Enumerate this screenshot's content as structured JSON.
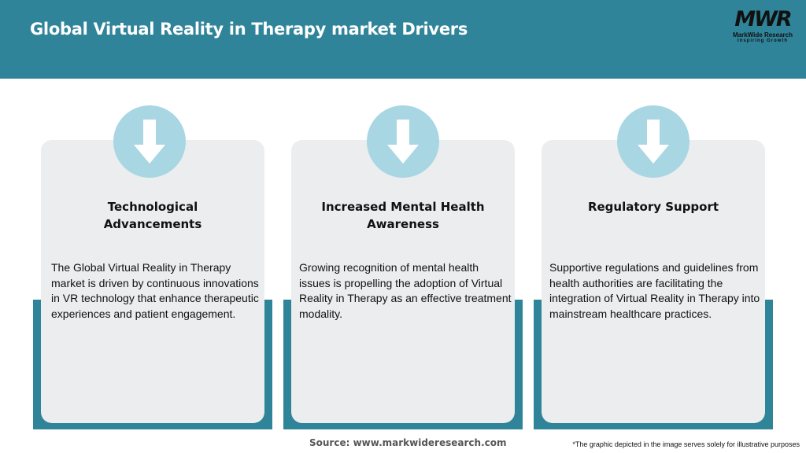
{
  "header": {
    "title": "Global Virtual Reality in Therapy market Drivers",
    "logo": {
      "mark": "MWR",
      "name": "MarkWide Research",
      "tagline": "Inspiring Growth"
    }
  },
  "colors": {
    "header": "#2f8499",
    "card": "#ebedef",
    "circle": "#a9d6e3"
  },
  "cards": [
    {
      "icon": "arrow-down-icon",
      "title": "Technological Advancements",
      "text": "The Global Virtual Reality in Therapy market is driven by continuous innovations in VR technology that enhance therapeutic experiences and patient engagement."
    },
    {
      "icon": "arrow-down-icon",
      "title": "Increased Mental Health Awareness",
      "text": "Growing recognition of mental health issues is propelling the adoption of Virtual Reality in Therapy as an effective treatment modality."
    },
    {
      "icon": "arrow-down-icon",
      "title": "Regulatory Support",
      "text": "Supportive regulations and guidelines from health authorities are facilitating the integration of Virtual Reality in Therapy into mainstream healthcare practices."
    }
  ],
  "footer": {
    "source": "Source: www.markwideresearch.com",
    "note": "*The graphic depicted in the image serves solely for illustrative purposes"
  }
}
